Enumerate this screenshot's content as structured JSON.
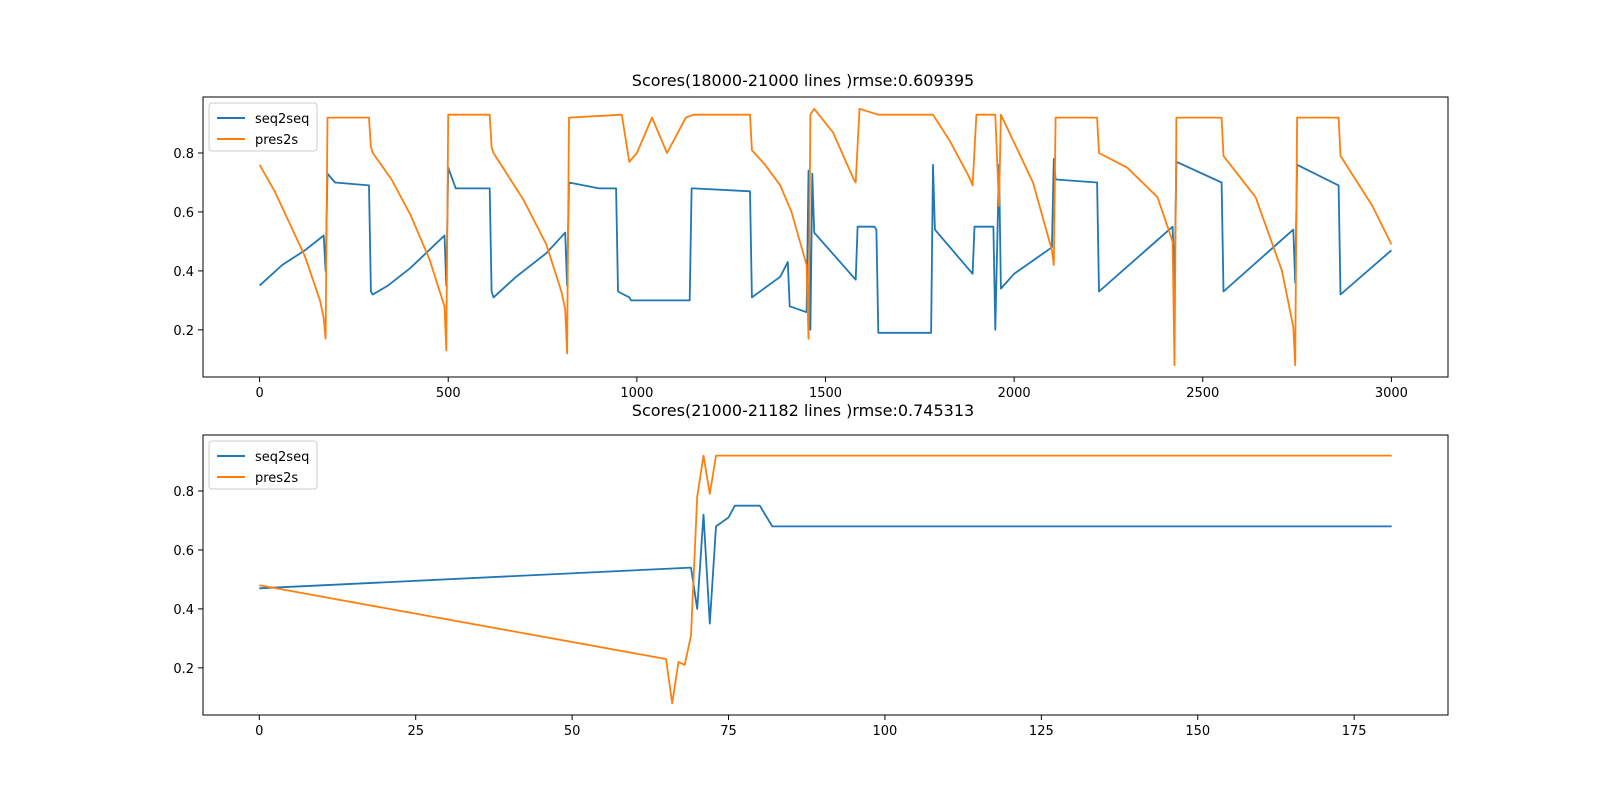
{
  "colors": {
    "seq2seq": "#1f77b4",
    "pres2s": "#ff7f0e",
    "axes": "#000000",
    "legend_border": "#cccccc"
  },
  "chart_data": [
    {
      "type": "line",
      "title": "Scores(18000-21000 lines )rmse:0.609395",
      "xlabel": "",
      "ylabel": "",
      "xlim": [
        -150,
        3150
      ],
      "ylim": [
        0.04,
        0.99
      ],
      "xticks": [
        0,
        500,
        1000,
        1500,
        2000,
        2500,
        3000
      ],
      "yticks": [
        0.2,
        0.4,
        0.6,
        0.8
      ],
      "grid": false,
      "legend": {
        "position": "upper-left",
        "entries": [
          "seq2seq",
          "pres2s"
        ]
      },
      "series": [
        {
          "name": "seq2seq",
          "color": "#1f77b4",
          "x": [
            0,
            60,
            120,
            170,
            175,
            180,
            200,
            290,
            295,
            300,
            340,
            400,
            490,
            495,
            500,
            520,
            610,
            615,
            620,
            680,
            760,
            810,
            815,
            820,
            900,
            945,
            950,
            980,
            985,
            1000,
            1140,
            1145,
            1150,
            1300,
            1305,
            1380,
            1400,
            1405,
            1450,
            1455,
            1460,
            1465,
            1470,
            1580,
            1585,
            1630,
            1635,
            1640,
            1780,
            1785,
            1790,
            1890,
            1895,
            1900,
            1945,
            1950,
            1960,
            1965,
            2000,
            2100,
            2105,
            2110,
            2220,
            2225,
            2420,
            2425,
            2430,
            2550,
            2555,
            2740,
            2745,
            2750,
            2860,
            2865,
            3000
          ],
          "y": [
            0.35,
            0.42,
            0.47,
            0.52,
            0.4,
            0.73,
            0.7,
            0.69,
            0.33,
            0.32,
            0.35,
            0.41,
            0.52,
            0.35,
            0.75,
            0.68,
            0.68,
            0.33,
            0.31,
            0.38,
            0.46,
            0.53,
            0.35,
            0.7,
            0.68,
            0.68,
            0.33,
            0.31,
            0.3,
            0.3,
            0.3,
            0.68,
            0.68,
            0.67,
            0.31,
            0.38,
            0.43,
            0.28,
            0.26,
            0.74,
            0.2,
            0.73,
            0.53,
            0.37,
            0.55,
            0.55,
            0.54,
            0.19,
            0.19,
            0.76,
            0.54,
            0.39,
            0.55,
            0.55,
            0.55,
            0.2,
            0.76,
            0.34,
            0.39,
            0.48,
            0.78,
            0.71,
            0.7,
            0.33,
            0.55,
            0.35,
            0.77,
            0.7,
            0.33,
            0.54,
            0.36,
            0.76,
            0.69,
            0.32,
            0.47
          ]
        },
        {
          "name": "pres2s",
          "color": "#ff7f0e",
          "x": [
            0,
            40,
            80,
            120,
            160,
            170,
            175,
            180,
            290,
            295,
            300,
            350,
            400,
            450,
            490,
            495,
            500,
            610,
            615,
            620,
            700,
            760,
            800,
            810,
            815,
            820,
            960,
            980,
            1000,
            1040,
            1080,
            1130,
            1150,
            1300,
            1305,
            1340,
            1380,
            1410,
            1450,
            1455,
            1460,
            1470,
            1520,
            1575,
            1580,
            1590,
            1640,
            1780,
            1785,
            1830,
            1880,
            1890,
            1900,
            1945,
            1950,
            1960,
            1965,
            2050,
            2100,
            2105,
            2110,
            2220,
            2225,
            2300,
            2380,
            2420,
            2425,
            2430,
            2550,
            2555,
            2640,
            2710,
            2740,
            2745,
            2750,
            2860,
            2865,
            2950,
            3000
          ],
          "y": [
            0.76,
            0.67,
            0.56,
            0.45,
            0.3,
            0.24,
            0.17,
            0.92,
            0.92,
            0.82,
            0.8,
            0.71,
            0.59,
            0.44,
            0.28,
            0.13,
            0.93,
            0.93,
            0.82,
            0.8,
            0.64,
            0.49,
            0.33,
            0.27,
            0.12,
            0.92,
            0.93,
            0.77,
            0.8,
            0.92,
            0.8,
            0.92,
            0.93,
            0.93,
            0.81,
            0.76,
            0.69,
            0.6,
            0.42,
            0.17,
            0.93,
            0.95,
            0.87,
            0.71,
            0.7,
            0.95,
            0.93,
            0.93,
            0.93,
            0.84,
            0.72,
            0.69,
            0.93,
            0.93,
            0.93,
            0.62,
            0.93,
            0.7,
            0.47,
            0.42,
            0.92,
            0.92,
            0.8,
            0.75,
            0.65,
            0.5,
            0.08,
            0.92,
            0.92,
            0.79,
            0.65,
            0.4,
            0.21,
            0.08,
            0.92,
            0.92,
            0.79,
            0.62,
            0.49
          ]
        }
      ]
    },
    {
      "type": "line",
      "title": "Scores(21000-21182 lines )rmse:0.745313",
      "xlabel": "",
      "ylabel": "",
      "xlim": [
        -9,
        190
      ],
      "ylim": [
        0.04,
        0.99
      ],
      "xticks": [
        0,
        25,
        50,
        75,
        100,
        125,
        150,
        175
      ],
      "yticks": [
        0.2,
        0.4,
        0.6,
        0.8
      ],
      "grid": false,
      "legend": {
        "position": "upper-left",
        "entries": [
          "seq2seq",
          "pres2s"
        ]
      },
      "series": [
        {
          "name": "seq2seq",
          "color": "#1f77b4",
          "x": [
            0,
            69,
            70,
            71,
            72,
            73,
            75,
            76,
            77,
            78,
            79,
            80,
            82,
            100,
            150,
            181
          ],
          "y": [
            0.47,
            0.54,
            0.4,
            0.72,
            0.35,
            0.68,
            0.71,
            0.75,
            0.75,
            0.75,
            0.75,
            0.75,
            0.68,
            0.68,
            0.68,
            0.68
          ],
          "clip": true
        },
        {
          "name": "pres2s",
          "color": "#ff7f0e",
          "x": [
            0,
            65,
            66,
            67,
            68,
            69,
            70,
            71,
            72,
            73,
            74,
            75,
            76,
            78,
            80,
            82,
            100,
            150,
            181
          ],
          "y": [
            0.48,
            0.23,
            0.08,
            0.22,
            0.21,
            0.31,
            0.78,
            0.92,
            0.79,
            0.92,
            0.92,
            0.92,
            0.92,
            0.92,
            0.92,
            0.92,
            0.92,
            0.92,
            0.92
          ]
        }
      ]
    }
  ]
}
